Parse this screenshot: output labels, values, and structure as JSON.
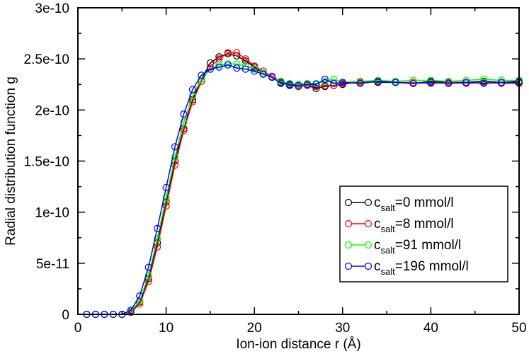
{
  "chart_data": {
    "type": "line",
    "xlabel": "Ion-ion distance r (Å)",
    "ylabel": "Radial distribution function g",
    "xlim": [
      0,
      50
    ],
    "ylim": [
      0,
      3e-10
    ],
    "xticks": [
      0,
      10,
      20,
      30,
      40,
      50
    ],
    "xtick_labels": [
      "0",
      "10",
      "20",
      "30",
      "40",
      "50"
    ],
    "yticks": [
      0,
      5e-11,
      1e-10,
      1.5e-10,
      2e-10,
      2.5e-10,
      3e-10
    ],
    "ytick_labels": [
      "0",
      "5e-11",
      "1e-10",
      "1.5e-10",
      "2e-10",
      "2.5e-10",
      "3e-10"
    ],
    "grid": false,
    "legend_position": "lower-right",
    "legend_title": "",
    "series": [
      {
        "name": "c_salt=0 mmol/l",
        "legend_main": "c",
        "legend_sub": "salt",
        "legend_rest": "=0 mmol/l",
        "color": "#000000",
        "x": [
          1,
          2,
          3,
          4,
          5,
          6,
          7,
          8,
          9,
          10,
          11,
          12,
          13,
          14,
          15,
          16,
          17,
          18,
          19,
          20,
          21,
          22,
          23,
          24,
          25,
          26,
          27,
          28,
          29,
          30,
          32,
          34,
          36,
          38,
          40,
          42,
          44,
          46,
          48,
          50
        ],
        "y": [
          0,
          0,
          0,
          0,
          0,
          2e-12,
          1.2e-11,
          3.5e-11,
          7e-11,
          1.1e-10,
          1.5e-10,
          1.82e-10,
          2.1e-10,
          2.3e-10,
          2.46e-10,
          2.52e-10,
          2.55e-10,
          2.53e-10,
          2.48e-10,
          2.42e-10,
          2.36e-10,
          2.32e-10,
          2.27e-10,
          2.24e-10,
          2.23e-10,
          2.24e-10,
          2.21e-10,
          2.23e-10,
          2.24e-10,
          2.25e-10,
          2.28e-10,
          2.27e-10,
          2.27e-10,
          2.26e-10,
          2.28e-10,
          2.27e-10,
          2.27e-10,
          2.28e-10,
          2.27e-10,
          2.28e-10
        ]
      },
      {
        "name": "c_salt=8 mmol/l",
        "legend_main": "c",
        "legend_sub": "salt",
        "legend_rest": "=8 mmol/l",
        "color": "#ff0000",
        "x": [
          1,
          2,
          3,
          4,
          5,
          6,
          7,
          8,
          9,
          10,
          11,
          12,
          13,
          14,
          15,
          16,
          17,
          18,
          19,
          20,
          21,
          22,
          23,
          24,
          25,
          26,
          27,
          28,
          29,
          30,
          32,
          34,
          36,
          38,
          40,
          42,
          44,
          46,
          48,
          50
        ],
        "y": [
          0,
          0,
          0,
          0,
          0,
          2e-12,
          1e-11,
          3.2e-11,
          6.6e-11,
          1.06e-10,
          1.46e-10,
          1.8e-10,
          2.08e-10,
          2.28e-10,
          2.42e-10,
          2.5e-10,
          2.56e-10,
          2.56e-10,
          2.5e-10,
          2.43e-10,
          2.38e-10,
          2.33e-10,
          2.28e-10,
          2.25e-10,
          2.23e-10,
          2.24e-10,
          2.23e-10,
          2.24e-10,
          2.24e-10,
          2.26e-10,
          2.27e-10,
          2.28e-10,
          2.27e-10,
          2.27e-10,
          2.26e-10,
          2.27e-10,
          2.26e-10,
          2.27e-10,
          2.26e-10,
          2.26e-10
        ]
      },
      {
        "name": "c_salt=91 mmol/l",
        "legend_main": "c",
        "legend_sub": "salt",
        "legend_rest": "=91 mmol/l",
        "color": "#00ff00",
        "x": [
          1,
          2,
          3,
          4,
          5,
          6,
          7,
          8,
          9,
          10,
          11,
          12,
          13,
          14,
          15,
          16,
          17,
          18,
          19,
          20,
          21,
          22,
          23,
          24,
          25,
          26,
          27,
          28,
          29,
          30,
          32,
          34,
          36,
          38,
          40,
          42,
          44,
          46,
          48,
          50
        ],
        "y": [
          0,
          0,
          0,
          0,
          0,
          3e-12,
          1.3e-11,
          3.8e-11,
          7.4e-11,
          1.14e-10,
          1.54e-10,
          1.88e-10,
          2.14e-10,
          2.3e-10,
          2.4e-10,
          2.44e-10,
          2.45e-10,
          2.45e-10,
          2.43e-10,
          2.4e-10,
          2.36e-10,
          2.32e-10,
          2.28e-10,
          2.26e-10,
          2.25e-10,
          2.26e-10,
          2.26e-10,
          2.28e-10,
          2.3e-10,
          2.27e-10,
          2.28e-10,
          2.29e-10,
          2.28e-10,
          2.29e-10,
          2.29e-10,
          2.28e-10,
          2.29e-10,
          2.3e-10,
          2.29e-10,
          2.29e-10
        ]
      },
      {
        "name": "c_salt=196 mmol/l",
        "legend_main": "c",
        "legend_sub": "salt",
        "legend_rest": "=196 mmol/l",
        "color": "#0000ff",
        "x": [
          1,
          2,
          3,
          4,
          5,
          6,
          7,
          8,
          9,
          10,
          11,
          12,
          13,
          14,
          15,
          16,
          17,
          18,
          19,
          20,
          21,
          22,
          23,
          24,
          25,
          26,
          27,
          28,
          29,
          30,
          32,
          34,
          36,
          38,
          40,
          42,
          44,
          46,
          48,
          50
        ],
        "y": [
          0,
          0,
          0,
          0,
          0,
          4e-12,
          1.8e-11,
          4.6e-11,
          8.4e-11,
          1.24e-10,
          1.64e-10,
          1.96e-10,
          2.2e-10,
          2.34e-10,
          2.4e-10,
          2.42e-10,
          2.44e-10,
          2.41e-10,
          2.4e-10,
          2.38e-10,
          2.35e-10,
          2.32e-10,
          2.26e-10,
          2.25e-10,
          2.24e-10,
          2.25e-10,
          2.25e-10,
          2.3e-10,
          2.26e-10,
          2.27e-10,
          2.26e-10,
          2.28e-10,
          2.27e-10,
          2.26e-10,
          2.27e-10,
          2.26e-10,
          2.27e-10,
          2.26e-10,
          2.27e-10,
          2.27e-10
        ]
      }
    ]
  }
}
